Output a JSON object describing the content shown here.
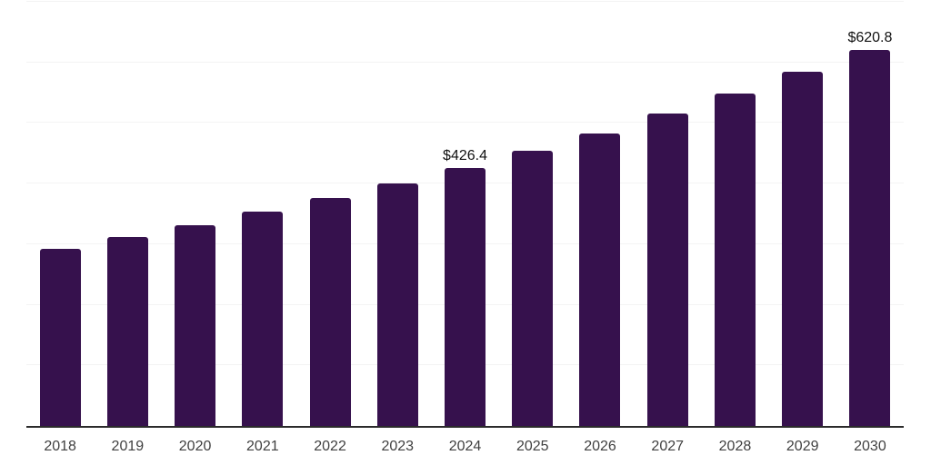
{
  "chart_data": {
    "type": "bar",
    "title": "",
    "xlabel": "",
    "ylabel": "",
    "categories": [
      "2018",
      "2019",
      "2020",
      "2021",
      "2022",
      "2023",
      "2024",
      "2025",
      "2026",
      "2027",
      "2028",
      "2029",
      "2030"
    ],
    "values": [
      292,
      312,
      331,
      354,
      376,
      400,
      426.4,
      454,
      483,
      515,
      548,
      584,
      620.8
    ],
    "data_labels": [
      "",
      "",
      "",
      "",
      "",
      "",
      "$426.4",
      "",
      "",
      "",
      "",
      "",
      "$620.8"
    ],
    "ylim": [
      0,
      700
    ],
    "gridline_step": 100,
    "grid": "horizontal-only",
    "y_axis_labels_visible": false,
    "legend": "none",
    "colors": {
      "bar": "#36114d",
      "gridline": "#f3f3f3",
      "axis_line": "#2b2b2b",
      "tick_label": "#404040",
      "data_label": "#111111",
      "background": "#ffffff"
    }
  }
}
